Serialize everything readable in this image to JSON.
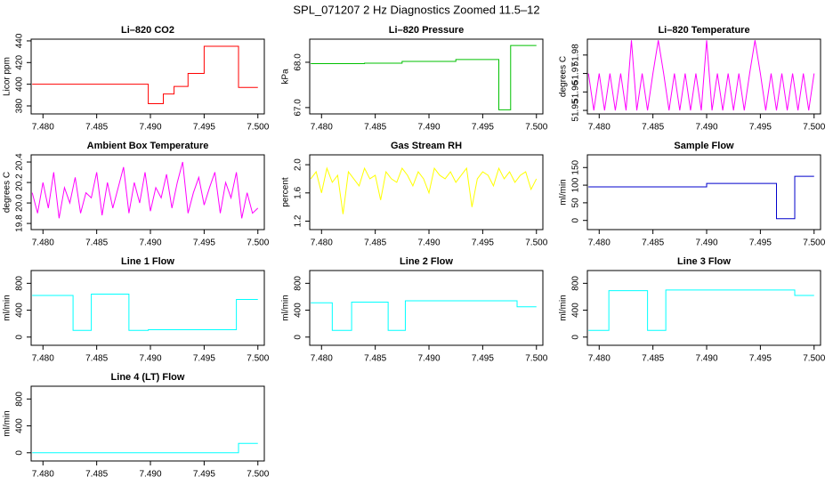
{
  "title": "SPL_071207  2 Hz Diagnostics Zoomed 11.5–12",
  "chart_data": [
    {
      "type": "line",
      "title": "Li–820 CO2",
      "ylabel": "Licor ppm",
      "x": [
        7.479,
        7.4898,
        7.4898,
        7.4912,
        7.4912,
        7.4922,
        7.4922,
        7.4935,
        7.4935,
        7.495,
        7.495,
        7.4982,
        7.4982,
        7.5
      ],
      "series": [
        {
          "color": "#ff0000",
          "values": [
            400,
            400,
            382,
            382,
            391,
            391,
            398,
            398,
            410,
            410,
            435,
            435,
            397,
            397
          ]
        }
      ],
      "xlim": [
        7.4789,
        7.5006
      ],
      "ylim": [
        372.6,
        441.6
      ],
      "xticks": [
        {
          "value": 7.48,
          "label": "7.480"
        },
        {
          "value": 7.485,
          "label": "7.485"
        },
        {
          "value": 7.49,
          "label": "7.490"
        },
        {
          "value": 7.495,
          "label": "7.495"
        },
        {
          "value": 7.5,
          "label": "7.500"
        }
      ],
      "yticks": [
        380,
        400,
        420,
        440
      ]
    },
    {
      "type": "line",
      "title": "Li–820 Pressure",
      "ylabel": "kPa",
      "x": [
        7.479,
        7.484,
        7.484,
        7.4875,
        7.4875,
        7.4925,
        7.4925,
        7.4965,
        7.4965,
        7.4976,
        7.4976,
        7.5
      ],
      "series": [
        {
          "color": "#00c000",
          "values": [
            67.97,
            67.97,
            67.98,
            67.98,
            68.02,
            68.02,
            68.06,
            68.06,
            66.95,
            66.95,
            68.37,
            68.37
          ]
        }
      ],
      "xlim": [
        7.4789,
        7.5006
      ],
      "ylim": [
        66.86,
        68.51
      ],
      "xticks": [
        {
          "value": 7.48,
          "label": "7.480"
        },
        {
          "value": 7.485,
          "label": "7.485"
        },
        {
          "value": 7.49,
          "label": "7.490"
        },
        {
          "value": 7.495,
          "label": "7.495"
        },
        {
          "value": 7.5,
          "label": "7.500"
        }
      ],
      "yticks": [
        {
          "value": 67,
          "label": "67.0"
        },
        {
          "value": 68,
          "label": "68.0"
        }
      ]
    },
    {
      "type": "line",
      "title": "Li–820 Temperature",
      "ylabel": "degrees C",
      "x": [
        7.479,
        7.4795,
        7.48,
        7.4805,
        7.481,
        7.4815,
        7.482,
        7.4825,
        7.483,
        7.4835,
        7.484,
        7.4845,
        7.485,
        7.4855,
        7.486,
        7.4865,
        7.487,
        7.4875,
        7.488,
        7.4885,
        7.489,
        7.4895,
        7.49,
        7.4905,
        7.491,
        7.4915,
        7.492,
        7.4925,
        7.493,
        7.4935,
        7.494,
        7.4945,
        7.495,
        7.4955,
        7.496,
        7.4965,
        7.497,
        7.4975,
        7.498,
        7.4985,
        7.499,
        7.4995,
        7.5
      ],
      "series": [
        {
          "color": "#ff00ff",
          "values": [
            51.97,
            51.95,
            51.97,
            51.95,
            51.97,
            51.95,
            51.97,
            51.95,
            51.988,
            51.95,
            51.97,
            51.95,
            51.97,
            51.988,
            51.97,
            51.95,
            51.97,
            51.95,
            51.97,
            51.95,
            51.97,
            51.95,
            51.988,
            51.95,
            51.97,
            51.95,
            51.97,
            51.95,
            51.97,
            51.95,
            51.97,
            51.988,
            51.97,
            51.95,
            51.97,
            51.95,
            51.97,
            51.95,
            51.97,
            51.95,
            51.97,
            51.95,
            51.97
          ]
        }
      ],
      "xlim": [
        7.4789,
        7.5006
      ],
      "ylim": [
        51.9481,
        51.9886
      ],
      "xticks": [
        {
          "value": 7.48,
          "label": "7.480"
        },
        {
          "value": 7.485,
          "label": "7.485"
        },
        {
          "value": 7.49,
          "label": "7.490"
        },
        {
          "value": 7.495,
          "label": "7.495"
        },
        {
          "value": 7.5,
          "label": "7.500"
        }
      ],
      "yticks": [
        51.95,
        51.96,
        51.97,
        51.98
      ]
    },
    {
      "type": "line",
      "title": "Ambient Box Temperature",
      "ylabel": "degrees C",
      "x": [
        7.479,
        7.4795,
        7.48,
        7.4805,
        7.481,
        7.4815,
        7.482,
        7.4825,
        7.483,
        7.4835,
        7.484,
        7.4845,
        7.485,
        7.4855,
        7.486,
        7.4865,
        7.487,
        7.4875,
        7.488,
        7.4885,
        7.489,
        7.4895,
        7.49,
        7.4905,
        7.491,
        7.4915,
        7.492,
        7.4925,
        7.493,
        7.4935,
        7.494,
        7.4945,
        7.495,
        7.4955,
        7.496,
        7.4965,
        7.497,
        7.4975,
        7.498,
        7.4985,
        7.499,
        7.4995,
        7.5
      ],
      "series": [
        {
          "color": "#ff00ff",
          "values": [
            20.1,
            19.9,
            20.2,
            19.95,
            20.3,
            19.85,
            20.15,
            20.0,
            20.25,
            19.9,
            20.1,
            20.05,
            20.3,
            19.88,
            20.2,
            19.95,
            20.15,
            20.35,
            19.9,
            20.2,
            20.0,
            20.3,
            19.92,
            20.15,
            20.05,
            20.28,
            19.95,
            20.2,
            20.4,
            19.9,
            20.1,
            20.25,
            19.98,
            20.15,
            20.3,
            19.9,
            20.2,
            20.05,
            20.3,
            19.85,
            20.1,
            19.9,
            19.95
          ]
        }
      ],
      "xlim": [
        7.4789,
        7.5006
      ],
      "ylim": [
        19.74,
        20.47
      ],
      "xticks": [
        {
          "value": 7.48,
          "label": "7.480"
        },
        {
          "value": 7.485,
          "label": "7.485"
        },
        {
          "value": 7.49,
          "label": "7.490"
        },
        {
          "value": 7.495,
          "label": "7.495"
        },
        {
          "value": 7.5,
          "label": "7.500"
        }
      ],
      "yticks": [
        19.8,
        {
          "value": 20,
          "label": "20.0"
        },
        20.2,
        20.4
      ]
    },
    {
      "type": "line",
      "title": "Gas Stream RH",
      "ylabel": "percent",
      "x": [
        7.479,
        7.4795,
        7.48,
        7.4805,
        7.481,
        7.4815,
        7.482,
        7.4825,
        7.483,
        7.4835,
        7.484,
        7.4845,
        7.485,
        7.4855,
        7.486,
        7.4865,
        7.487,
        7.4875,
        7.488,
        7.4885,
        7.489,
        7.4895,
        7.49,
        7.4905,
        7.491,
        7.4915,
        7.492,
        7.4925,
        7.493,
        7.4935,
        7.494,
        7.4945,
        7.495,
        7.4955,
        7.496,
        7.4965,
        7.497,
        7.4975,
        7.498,
        7.4985,
        7.499,
        7.4995,
        7.5
      ],
      "series": [
        {
          "color": "#ffff00",
          "values": [
            1.8,
            1.9,
            1.6,
            1.95,
            1.75,
            1.85,
            1.3,
            1.9,
            1.8,
            1.7,
            1.95,
            1.8,
            1.85,
            1.5,
            1.9,
            1.8,
            1.75,
            1.95,
            1.85,
            1.7,
            1.9,
            1.8,
            1.6,
            1.95,
            1.85,
            1.8,
            1.9,
            1.75,
            1.85,
            1.95,
            1.4,
            1.8,
            1.9,
            1.85,
            1.7,
            1.95,
            1.8,
            1.9,
            1.75,
            1.85,
            1.9,
            1.65,
            1.8
          ]
        }
      ],
      "xlim": [
        7.4789,
        7.5006
      ],
      "ylim": [
        1.08,
        2.14
      ],
      "xticks": [
        {
          "value": 7.48,
          "label": "7.480"
        },
        {
          "value": 7.485,
          "label": "7.485"
        },
        {
          "value": 7.49,
          "label": "7.490"
        },
        {
          "value": 7.495,
          "label": "7.495"
        },
        {
          "value": 7.5,
          "label": "7.500"
        }
      ],
      "yticks": [
        1.2,
        1.6,
        {
          "value": 2,
          "label": "2.0"
        }
      ]
    },
    {
      "type": "line",
      "title": "Sample Flow",
      "ylabel": "ml/min",
      "x": [
        7.479,
        7.49,
        7.49,
        7.4965,
        7.4965,
        7.4982,
        7.4982,
        7.5
      ],
      "series": [
        {
          "color": "#0000cc",
          "values": [
            95,
            95,
            105,
            105,
            5,
            5,
            125,
            125
          ]
        }
      ],
      "xlim": [
        7.4789,
        7.5006
      ],
      "ylim": [
        -26,
        186
      ],
      "xticks": [
        {
          "value": 7.48,
          "label": "7.480"
        },
        {
          "value": 7.485,
          "label": "7.485"
        },
        {
          "value": 7.49,
          "label": "7.490"
        },
        {
          "value": 7.495,
          "label": "7.495"
        },
        {
          "value": 7.5,
          "label": "7.500"
        }
      ],
      "yticks": [
        0,
        50,
        100,
        150
      ]
    },
    {
      "type": "line",
      "title": "Line 1 Flow",
      "ylabel": "ml/min",
      "x": [
        7.479,
        7.4828,
        7.4828,
        7.4845,
        7.4845,
        7.488,
        7.488,
        7.4898,
        7.4898,
        7.498,
        7.498,
        7.5
      ],
      "series": [
        {
          "color": "#00ffff",
          "values": [
            620,
            620,
            100,
            100,
            640,
            640,
            100,
            100,
            110,
            110,
            560,
            560
          ]
        }
      ],
      "xlim": [
        7.4789,
        7.5006
      ],
      "ylim": [
        -122,
        990
      ],
      "xticks": [
        {
          "value": 7.48,
          "label": "7.480"
        },
        {
          "value": 7.485,
          "label": "7.485"
        },
        {
          "value": 7.49,
          "label": "7.490"
        },
        {
          "value": 7.495,
          "label": "7.495"
        },
        {
          "value": 7.5,
          "label": "7.500"
        }
      ],
      "yticks": [
        0,
        400,
        800
      ]
    },
    {
      "type": "line",
      "title": "Line 2 Flow",
      "ylabel": "ml/min",
      "x": [
        7.479,
        7.481,
        7.481,
        7.4828,
        7.4828,
        7.4862,
        7.4862,
        7.4878,
        7.4878,
        7.4982,
        7.4982,
        7.5
      ],
      "series": [
        {
          "color": "#00ffff",
          "values": [
            510,
            510,
            100,
            100,
            520,
            520,
            100,
            100,
            540,
            540,
            450,
            450
          ]
        }
      ],
      "xlim": [
        7.4789,
        7.5006
      ],
      "ylim": [
        -122,
        990
      ],
      "xticks": [
        {
          "value": 7.48,
          "label": "7.480"
        },
        {
          "value": 7.485,
          "label": "7.485"
        },
        {
          "value": 7.49,
          "label": "7.490"
        },
        {
          "value": 7.495,
          "label": "7.495"
        },
        {
          "value": 7.5,
          "label": "7.500"
        }
      ],
      "yticks": [
        0,
        400,
        800
      ]
    },
    {
      "type": "line",
      "title": "Line 3 Flow",
      "ylabel": "ml/min",
      "x": [
        7.479,
        7.4809,
        7.4809,
        7.4845,
        7.4845,
        7.4862,
        7.4862,
        7.4982,
        7.4982,
        7.5
      ],
      "series": [
        {
          "color": "#00ffff",
          "values": [
            100,
            100,
            690,
            690,
            100,
            100,
            700,
            700,
            620,
            620
          ]
        }
      ],
      "xlim": [
        7.4789,
        7.5006
      ],
      "ylim": [
        -122,
        990
      ],
      "xticks": [
        {
          "value": 7.48,
          "label": "7.480"
        },
        {
          "value": 7.485,
          "label": "7.485"
        },
        {
          "value": 7.49,
          "label": "7.490"
        },
        {
          "value": 7.495,
          "label": "7.495"
        },
        {
          "value": 7.5,
          "label": "7.500"
        }
      ],
      "yticks": [
        0,
        400,
        800
      ]
    },
    {
      "type": "line",
      "title": "Line 4 (LT) Flow",
      "ylabel": "ml/min",
      "x": [
        7.479,
        7.4982,
        7.4982,
        7.5
      ],
      "series": [
        {
          "color": "#00ffff",
          "values": [
            0,
            0,
            140,
            140
          ]
        }
      ],
      "xlim": [
        7.4789,
        7.5006
      ],
      "ylim": [
        -122,
        990
      ],
      "xticks": [
        {
          "value": 7.48,
          "label": "7.480"
        },
        {
          "value": 7.485,
          "label": "7.485"
        },
        {
          "value": 7.49,
          "label": "7.490"
        },
        {
          "value": 7.495,
          "label": "7.495"
        },
        {
          "value": 7.5,
          "label": "7.500"
        }
      ],
      "yticks": [
        0,
        400,
        800
      ]
    }
  ]
}
